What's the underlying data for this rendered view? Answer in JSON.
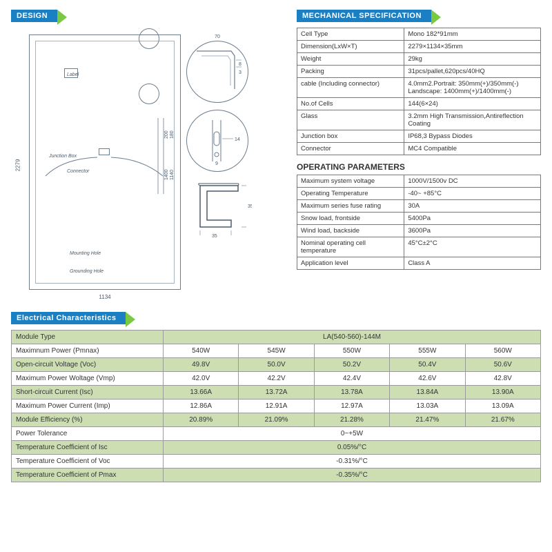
{
  "headers": {
    "design": "DESIGN",
    "mechSpec": "MECHANICAL SPECIFICATION",
    "opParams": "OPERATING PARAMETERS",
    "elec": "Electrical Characteristics"
  },
  "diagram": {
    "label": "Label",
    "junctionBox": "Junction Box",
    "connector": "Connector",
    "mountingHole": "Mounting Hole",
    "groundingHole": "Grounding Hole",
    "height": "2279",
    "width": "1134",
    "topInset": "70",
    "sideInset1": "8",
    "sideInset2": "3",
    "holeDim1": "14",
    "holeDim2": "9",
    "midTicks": [
      "1400",
      "1140",
      "200",
      "180"
    ],
    "frameW": "35",
    "frameH": "35"
  },
  "mechSpec": [
    {
      "k": "Cell Type",
      "v": "Mono 182*91mm"
    },
    {
      "k": "Dimension(LxW×T)",
      "v": "2279×1134×35mm"
    },
    {
      "k": "Weight",
      "v": "29kg"
    },
    {
      "k": "Packing",
      "v": "31pcs/pallet,620pcs/40HQ"
    },
    {
      "k": "cable (Including connector)",
      "v": "4.0mm2.Portrait: 350mm(+)/350mm(-) Landscape: 1400mm(+)/1400mm(-)"
    },
    {
      "k": "No.of Cells",
      "v": "144(6×24)"
    },
    {
      "k": "Glass",
      "v": "3.2mm High Transmission,Antireflection Coating"
    },
    {
      "k": "Junction box",
      "v": "IP68,3 Bypass Diodes"
    },
    {
      "k": "Connector",
      "v": "MC4 Compatible"
    }
  ],
  "opParams": [
    {
      "k": "Maximum system voltage",
      "v": "1000V/1500v DC"
    },
    {
      "k": "Operating Temperature",
      "v": "-40~ +85°C"
    },
    {
      "k": "Maximum series fuse rating",
      "v": "30A"
    },
    {
      "k": "Snow load, frontside",
      "v": "5400Pa"
    },
    {
      "k": "Wind load, backside",
      "v": "3600Pa"
    },
    {
      "k": "Nominal operating cell temperature",
      "v": "45°C±2°C"
    },
    {
      "k": "Application level",
      "v": "Class A"
    }
  ],
  "elec": {
    "moduleTypeLabel": "Module Type",
    "moduleTypeValue": "LA(540-560)-144M",
    "rows": [
      {
        "stripe": false,
        "label": "Maximnum Power (Pmnax)",
        "cells": [
          "540W",
          "545W",
          "550W",
          "555W",
          "560W"
        ]
      },
      {
        "stripe": true,
        "label": "Open-circuit Voltage (Voc)",
        "cells": [
          "49.8V",
          "50.0V",
          "50.2V",
          "50.4V",
          "50.6V"
        ]
      },
      {
        "stripe": false,
        "label": "Maximum Power Woltage (Vmp)",
        "cells": [
          "42.0V",
          "42.2V",
          "42.4V",
          "42.6V",
          "42.8V"
        ]
      },
      {
        "stripe": true,
        "label": "Short-circuit Current (Isc)",
        "cells": [
          "13.66A",
          "13.72A",
          "13.78A",
          "13.84A",
          "13.90A"
        ]
      },
      {
        "stripe": false,
        "label": "Maximum Power Current (Imp)",
        "cells": [
          "12.86A",
          "12.91A",
          "12.97A",
          "13.03A",
          "13.09A"
        ]
      },
      {
        "stripe": true,
        "label": "Module Efficiency (%)",
        "cells": [
          "20.89%",
          "21.09%",
          "21.28%",
          "21.47%",
          "21.67%"
        ]
      }
    ],
    "spanRows": [
      {
        "stripe": false,
        "label": "Power Tolerance",
        "value": "0~+5W"
      },
      {
        "stripe": true,
        "label": "Temperature Coefficient of Isc",
        "value": "0.05%/°C"
      },
      {
        "stripe": false,
        "label": "Temperature Coefficient of Voc",
        "value": "-0.31%/°C"
      },
      {
        "stripe": true,
        "label": "Temperature Coefficient of Pmax",
        "value": "-0.35%/°C"
      }
    ]
  },
  "colors": {
    "headerBlue": "#1b7fc3",
    "accentGreen": "#7ac943",
    "stripe": "#cddfb2",
    "border": "#777",
    "diagramLine": "#6b7c8c"
  }
}
